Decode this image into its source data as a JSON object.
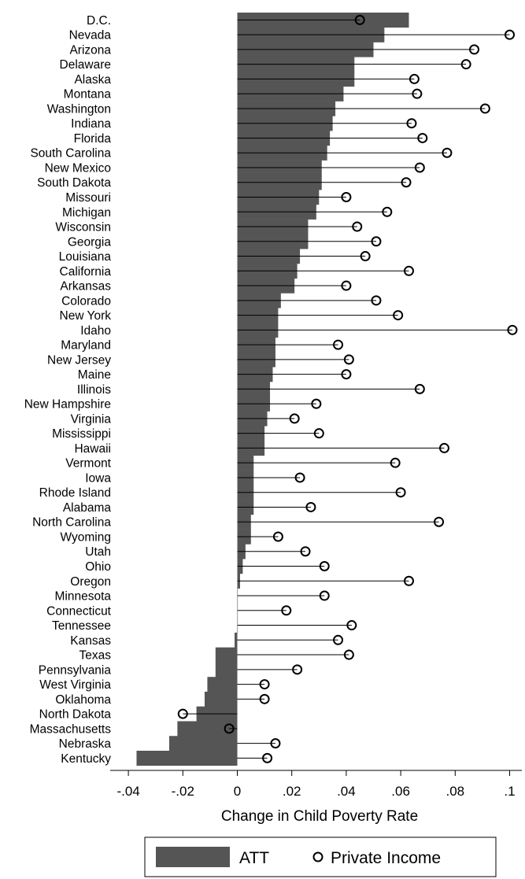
{
  "chart_data": {
    "type": "bar",
    "orientation": "horizontal",
    "title": "",
    "xlabel": "Change in Child Poverty Rate",
    "ylabel": "",
    "xlim": [
      -0.04,
      0.1
    ],
    "x_ticks": [
      -0.04,
      -0.02,
      0,
      0.02,
      0.04,
      0.06,
      0.08,
      0.1
    ],
    "x_tick_labels": [
      "-.04",
      "-.02",
      "0",
      ".02",
      ".04",
      ".06",
      ".08",
      ".1"
    ],
    "grid": false,
    "legend_position": "bottom",
    "colors": {
      "att": "#555555",
      "private_income": "#000000"
    },
    "categories": [
      "D.C.",
      "Nevada",
      "Arizona",
      "Delaware",
      "Alaska",
      "Montana",
      "Washington",
      "Indiana",
      "Florida",
      "South Carolina",
      "New Mexico",
      "South Dakota",
      "Missouri",
      "Michigan",
      "Wisconsin",
      "Georgia",
      "Louisiana",
      "California",
      "Arkansas",
      "Colorado",
      "New York",
      "Idaho",
      "Maryland",
      "New Jersey",
      "Maine",
      "Illinois",
      "New Hampshire",
      "Virginia",
      "Mississippi",
      "Hawaii",
      "Vermont",
      "Iowa",
      "Rhode Island",
      "Alabama",
      "North Carolina",
      "Wyoming",
      "Utah",
      "Ohio",
      "Oregon",
      "Minnesota",
      "Connecticut",
      "Tennessee",
      "Kansas",
      "Texas",
      "Pennsylvania",
      "West Virginia",
      "Oklahoma",
      "North Dakota",
      "Massachusetts",
      "Nebraska",
      "Kentucky"
    ],
    "series": [
      {
        "name": "ATT",
        "kind": "bar",
        "values": [
          0.063,
          0.054,
          0.05,
          0.043,
          0.043,
          0.039,
          0.036,
          0.035,
          0.034,
          0.033,
          0.031,
          0.031,
          0.03,
          0.029,
          0.026,
          0.026,
          0.023,
          0.022,
          0.021,
          0.016,
          0.015,
          0.015,
          0.014,
          0.014,
          0.013,
          0.012,
          0.012,
          0.011,
          0.01,
          0.01,
          0.006,
          0.006,
          0.006,
          0.006,
          0.005,
          0.005,
          0.003,
          0.002,
          0.001,
          0.0,
          0.0,
          0.0,
          -0.001,
          -0.008,
          -0.008,
          -0.011,
          -0.012,
          -0.015,
          -0.022,
          -0.025,
          -0.037
        ]
      },
      {
        "name": "Private Income",
        "kind": "point",
        "values": [
          0.045,
          0.1,
          0.087,
          0.084,
          0.065,
          0.066,
          0.091,
          0.064,
          0.068,
          0.077,
          0.067,
          0.062,
          0.04,
          0.055,
          0.044,
          0.051,
          0.047,
          0.063,
          0.04,
          0.051,
          0.059,
          0.101,
          0.037,
          0.041,
          0.04,
          0.067,
          0.029,
          0.021,
          0.03,
          0.076,
          0.058,
          0.023,
          0.06,
          0.027,
          0.074,
          0.015,
          0.025,
          0.032,
          0.063,
          0.032,
          0.018,
          0.042,
          0.037,
          0.041,
          0.022,
          0.01,
          0.01,
          -0.02,
          -0.003,
          0.014,
          0.011
        ]
      }
    ]
  },
  "legend": {
    "att_label": "ATT",
    "private_income_label": "Private Income"
  }
}
